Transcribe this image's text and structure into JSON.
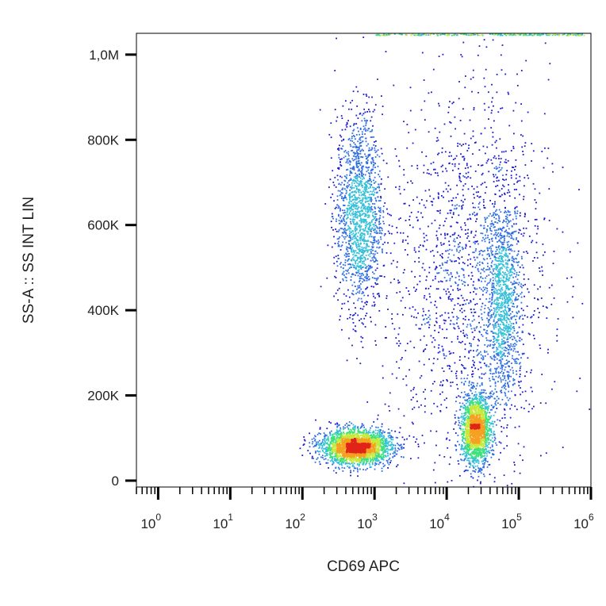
{
  "chart_data": {
    "type": "scatter",
    "subtype": "flow-cytometry-density-dot-plot",
    "title": "",
    "xlabel": "CD69 APC",
    "ylabel": "SS-A :: SS INT LIN",
    "x_scale": "log",
    "x_range": [
      0.5,
      1000000
    ],
    "x_ticks": [
      {
        "base": "10",
        "exp": "0",
        "value": 1
      },
      {
        "base": "10",
        "exp": "1",
        "value": 10
      },
      {
        "base": "10",
        "exp": "2",
        "value": 100
      },
      {
        "base": "10",
        "exp": "3",
        "value": 1000
      },
      {
        "base": "10",
        "exp": "4",
        "value": 10000
      },
      {
        "base": "10",
        "exp": "5",
        "value": 100000
      },
      {
        "base": "10",
        "exp": "6",
        "value": 1000000
      }
    ],
    "y_scale": "linear",
    "y_range": [
      -15000,
      1050000
    ],
    "y_ticks": [
      {
        "label": "0",
        "value": 0
      },
      {
        "label": "200K",
        "value": 200000
      },
      {
        "label": "400K",
        "value": 400000
      },
      {
        "label": "600K",
        "value": 600000
      },
      {
        "label": "800K",
        "value": 800000
      },
      {
        "label": "1,0M",
        "value": 1000000
      }
    ],
    "density_colormap": [
      "#1a1acc",
      "#2f6fe0",
      "#35c0d8",
      "#3fe07a",
      "#c8e83a",
      "#f5a020",
      "#e02418"
    ],
    "populations": [
      {
        "name": "",
        "x_center": 550,
        "y_center": 80000,
        "log_x_spread": 0.24,
        "y_spread": 20000,
        "points": 2600
      },
      {
        "name": "",
        "x_center": 600,
        "y_center": 630000,
        "log_x_spread": 0.16,
        "y_spread": 115000,
        "points": 1600
      },
      {
        "name": "",
        "x_center": 25000,
        "y_center": 120000,
        "log_x_spread": 0.1,
        "y_spread": 40000,
        "points": 1800
      },
      {
        "name": "",
        "x_center": 60000,
        "y_center": 420000,
        "log_x_spread": 0.12,
        "y_spread": 120000,
        "points": 1100
      },
      {
        "name": "",
        "x_center": 20000,
        "y_center": 480000,
        "log_x_spread": 0.55,
        "y_spread": 230000,
        "points": 1700
      }
    ],
    "grid": false,
    "legend": "none"
  }
}
